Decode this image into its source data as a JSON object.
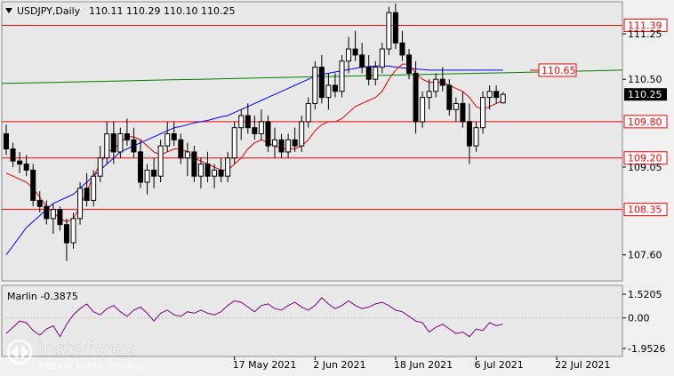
{
  "header": {
    "symbol_label": "USDJPY,Daily",
    "ohlc_label": "110.11 110.29 110.10 110.25"
  },
  "indicator": {
    "label": "Marlin -0.3875",
    "levels": [
      "1.5205",
      "0.00",
      "-1.9526"
    ],
    "level_values": [
      1.5205,
      0.0,
      -1.9526
    ]
  },
  "watermark": {
    "brand": "instaforex",
    "tagline": "Instant Forex Trading"
  },
  "colors": {
    "background": "#e8e8e8",
    "bull_candle": "#ffffff",
    "bear_candle": "#000000",
    "level_line": "#ff0000",
    "ma_fast": "#e00000",
    "ma_slow": "#0000ff",
    "ma_long": "#008000",
    "oscillator": "#800080",
    "price_tag": "#000000"
  },
  "chart_data": {
    "type": "candlestick",
    "ylim": [
      107.2,
      111.75
    ],
    "y_ticks": [
      "111.25",
      "110.50",
      "109.05",
      "107.60"
    ],
    "y_tick_values": [
      111.25,
      110.5,
      109.05,
      107.6
    ],
    "x_tick_labels": [
      "17 May 2021",
      "2 Jun 2021",
      "18 Jun 2021",
      "6 Jul 2021",
      "22 Jul 2021"
    ],
    "x_tick_index": [
      34,
      46,
      58,
      70,
      82
    ],
    "levels": [
      {
        "label": "111.39",
        "value": 111.39,
        "style": "boxed"
      },
      {
        "label": "109.80",
        "value": 109.8,
        "style": "boxed"
      },
      {
        "label": "109.20",
        "value": 109.2,
        "style": "boxed"
      },
      {
        "label": "108.35",
        "value": 108.35,
        "style": "boxed"
      }
    ],
    "ma_long_label": "110.65",
    "ma_long_value": 110.65,
    "current_price_label": "110.25",
    "current_price": 110.25,
    "candles": [
      [
        109.6,
        109.75,
        109.25,
        109.35
      ],
      [
        109.35,
        109.45,
        109.05,
        109.15
      ],
      [
        109.15,
        109.3,
        108.95,
        109.1
      ],
      [
        109.1,
        109.25,
        108.9,
        109.0
      ],
      [
        109.0,
        109.1,
        108.4,
        108.5
      ],
      [
        108.5,
        108.65,
        108.3,
        108.4
      ],
      [
        108.4,
        108.5,
        108.1,
        108.2
      ],
      [
        108.2,
        108.45,
        107.95,
        108.35
      ],
      [
        108.35,
        108.4,
        108.0,
        108.1
      ],
      [
        108.1,
        108.2,
        107.5,
        107.8
      ],
      [
        107.8,
        108.3,
        107.7,
        108.2
      ],
      [
        108.2,
        108.8,
        108.1,
        108.7
      ],
      [
        108.7,
        108.95,
        108.4,
        108.5
      ],
      [
        108.5,
        109.0,
        108.4,
        108.9
      ],
      [
        108.9,
        109.4,
        108.8,
        109.2
      ],
      [
        109.2,
        109.8,
        109.1,
        109.6
      ],
      [
        109.6,
        109.8,
        109.1,
        109.3
      ],
      [
        109.3,
        109.7,
        109.2,
        109.6
      ],
      [
        109.6,
        109.85,
        109.4,
        109.5
      ],
      [
        109.5,
        109.7,
        109.2,
        109.3
      ],
      [
        109.3,
        109.5,
        108.7,
        108.8
      ],
      [
        108.8,
        109.1,
        108.6,
        109.0
      ],
      [
        109.0,
        109.2,
        108.7,
        108.9
      ],
      [
        108.9,
        109.5,
        108.8,
        109.4
      ],
      [
        109.4,
        109.8,
        109.3,
        109.6
      ],
      [
        109.6,
        109.8,
        109.4,
        109.5
      ],
      [
        109.5,
        109.6,
        109.1,
        109.2
      ],
      [
        109.2,
        109.45,
        108.9,
        109.3
      ],
      [
        109.3,
        109.4,
        108.8,
        108.9
      ],
      [
        108.9,
        109.2,
        108.7,
        109.1
      ],
      [
        109.1,
        109.3,
        108.8,
        108.9
      ],
      [
        108.9,
        109.1,
        108.7,
        109.0
      ],
      [
        109.0,
        109.2,
        108.8,
        108.9
      ],
      [
        108.9,
        109.3,
        108.8,
        109.2
      ],
      [
        109.2,
        109.8,
        109.1,
        109.7
      ],
      [
        109.7,
        110.0,
        109.5,
        109.9
      ],
      [
        109.9,
        110.1,
        109.6,
        109.7
      ],
      [
        109.7,
        109.9,
        109.5,
        109.6
      ],
      [
        109.6,
        110.0,
        109.5,
        109.8
      ],
      [
        109.8,
        109.9,
        109.3,
        109.4
      ],
      [
        109.4,
        109.7,
        109.2,
        109.5
      ],
      [
        109.5,
        109.6,
        109.2,
        109.3
      ],
      [
        109.3,
        109.6,
        109.2,
        109.5
      ],
      [
        109.5,
        109.7,
        109.3,
        109.4
      ],
      [
        109.4,
        109.9,
        109.3,
        109.8
      ],
      [
        109.8,
        110.2,
        109.7,
        110.1
      ],
      [
        110.1,
        110.8,
        110.0,
        110.7
      ],
      [
        110.7,
        110.9,
        110.1,
        110.2
      ],
      [
        110.2,
        110.6,
        110.0,
        110.4
      ],
      [
        110.4,
        110.6,
        110.2,
        110.3
      ],
      [
        110.3,
        110.9,
        110.2,
        110.8
      ],
      [
        110.8,
        111.2,
        110.6,
        111.0
      ],
      [
        111.0,
        111.3,
        110.8,
        110.9
      ],
      [
        110.9,
        111.1,
        110.6,
        110.7
      ],
      [
        110.7,
        110.9,
        110.4,
        110.5
      ],
      [
        110.5,
        110.8,
        110.4,
        110.7
      ],
      [
        110.7,
        111.1,
        110.6,
        111.0
      ],
      [
        111.0,
        111.7,
        110.9,
        111.6
      ],
      [
        111.6,
        111.75,
        111.0,
        111.1
      ],
      [
        111.1,
        111.3,
        110.8,
        110.9
      ],
      [
        110.9,
        111.0,
        110.5,
        110.6
      ],
      [
        110.6,
        110.8,
        109.6,
        109.8
      ],
      [
        109.8,
        110.3,
        109.7,
        110.2
      ],
      [
        110.2,
        110.5,
        110.0,
        110.3
      ],
      [
        110.3,
        110.6,
        110.2,
        110.5
      ],
      [
        110.5,
        110.7,
        110.3,
        110.4
      ],
      [
        110.4,
        110.5,
        109.9,
        110.0
      ],
      [
        110.0,
        110.2,
        109.8,
        110.1
      ],
      [
        110.1,
        110.3,
        109.7,
        109.8
      ],
      [
        109.8,
        110.1,
        109.1,
        109.4
      ],
      [
        109.4,
        109.8,
        109.3,
        109.7
      ],
      [
        109.7,
        110.3,
        109.6,
        110.2
      ],
      [
        110.2,
        110.4,
        110.0,
        110.3
      ],
      [
        110.3,
        110.4,
        110.1,
        110.2
      ],
      [
        110.11,
        110.29,
        110.1,
        110.25
      ]
    ],
    "ma_fast": [
      108.95,
      108.9,
      108.85,
      108.8,
      108.7,
      108.55,
      108.4,
      108.3,
      108.2,
      108.15,
      108.2,
      108.4,
      108.65,
      108.9,
      109.1,
      109.3,
      109.35,
      109.45,
      109.55,
      109.55,
      109.5,
      109.4,
      109.3,
      109.25,
      109.3,
      109.35,
      109.35,
      109.3,
      109.2,
      109.15,
      109.1,
      109.05,
      109.0,
      109.0,
      109.1,
      109.2,
      109.35,
      109.45,
      109.5,
      109.45,
      109.4,
      109.35,
      109.35,
      109.35,
      109.4,
      109.5,
      109.65,
      109.75,
      109.8,
      109.8,
      109.85,
      109.95,
      110.05,
      110.1,
      110.15,
      110.2,
      110.3,
      110.5,
      110.65,
      110.75,
      110.75,
      110.6,
      110.5,
      110.45,
      110.45,
      110.45,
      110.4,
      110.35,
      110.3,
      110.2,
      110.05,
      110.0,
      110.05,
      110.1,
      110.15
    ],
    "ma_slow": [
      107.6,
      107.75,
      107.9,
      108.05,
      108.15,
      108.25,
      108.35,
      108.45,
      108.5,
      108.55,
      108.6,
      108.7,
      108.8,
      108.9,
      109.0,
      109.1,
      109.2,
      109.3,
      109.35,
      109.4,
      109.45,
      109.5,
      109.55,
      109.6,
      109.65,
      109.7,
      109.72,
      109.75,
      109.78,
      109.8,
      109.82,
      109.85,
      109.88,
      109.9,
      109.95,
      110.0,
      110.05,
      110.1,
      110.15,
      110.2,
      110.25,
      110.3,
      110.35,
      110.4,
      110.45,
      110.5,
      110.55,
      110.58,
      110.6,
      110.62,
      110.64,
      110.66,
      110.68,
      110.7,
      110.71,
      110.72,
      110.72,
      110.72,
      110.7,
      110.69,
      110.68,
      110.67,
      110.66,
      110.65,
      110.65,
      110.65,
      110.65,
      110.65,
      110.65,
      110.65,
      110.65,
      110.65,
      110.65,
      110.65,
      110.65
    ],
    "ma_long": [
      110.43,
      110.44,
      110.45,
      110.46,
      110.47,
      110.48,
      110.49,
      110.5,
      110.51,
      110.52,
      110.53,
      110.54,
      110.55,
      110.56,
      110.57,
      110.58,
      110.59,
      110.6,
      110.61,
      110.62,
      110.63,
      110.64,
      110.65
    ],
    "oscillator": [
      -1.0,
      -0.6,
      -0.2,
      -0.3,
      -0.8,
      -1.1,
      -0.7,
      -0.5,
      -1.2,
      -0.4,
      0.2,
      0.6,
      0.9,
      0.4,
      0.2,
      0.6,
      0.8,
      0.4,
      0.1,
      0.5,
      0.7,
      0.3,
      -0.2,
      0.3,
      0.5,
      0.2,
      0.1,
      0.4,
      0.3,
      0.5,
      0.3,
      0.2,
      0.4,
      0.8,
      1.1,
      1.0,
      0.7,
      0.4,
      0.8,
      0.9,
      0.6,
      0.5,
      0.8,
      1.0,
      0.7,
      0.5,
      0.8,
      1.3,
      0.9,
      0.6,
      0.8,
      1.1,
      0.8,
      0.6,
      0.7,
      0.9,
      1.0,
      0.8,
      0.5,
      0.4,
      0.1,
      -0.2,
      -0.3,
      -0.9,
      -0.6,
      -0.4,
      -0.7,
      -1.0,
      -0.9,
      -1.2,
      -0.7,
      -0.8,
      -0.3,
      -0.5,
      -0.4
    ]
  }
}
